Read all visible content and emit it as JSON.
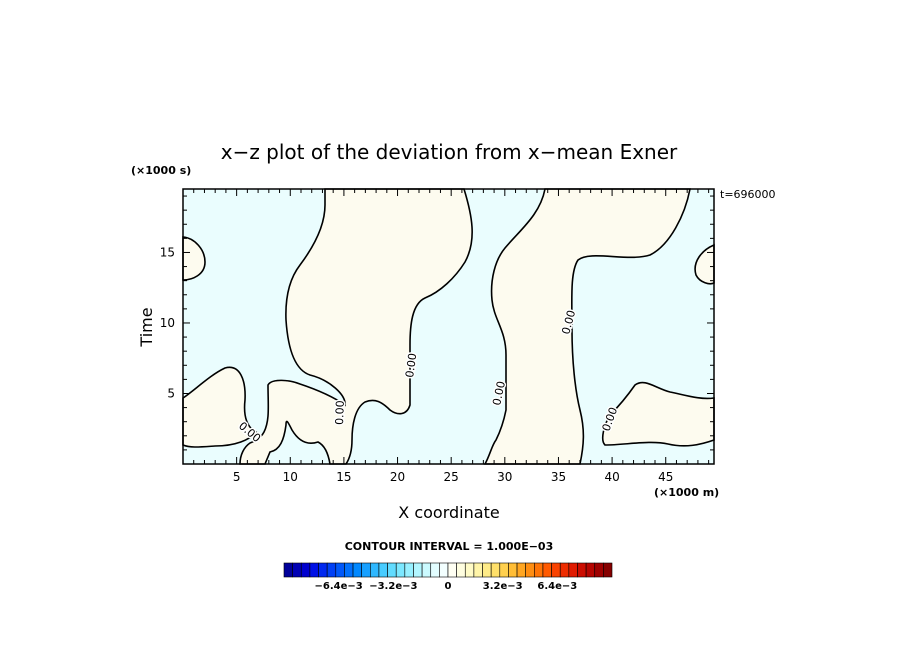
{
  "chart_data": {
    "type": "heatmap",
    "title": "x−z plot of the deviation from x−mean Exner",
    "xlabel": "X coordinate",
    "ylabel": "Time",
    "x_unit": "(×1000 m)",
    "y_unit": "(×1000 s)",
    "timestamp": "t=696000",
    "xlim": [
      0,
      49.5
    ],
    "ylim": [
      0,
      19.5
    ],
    "x_ticks": [
      5,
      10,
      15,
      20,
      25,
      30,
      35,
      40,
      45
    ],
    "y_ticks": [
      5,
      10,
      15
    ],
    "x_tick_labels": [
      "5",
      "10",
      "15",
      "20",
      "25",
      "30",
      "35",
      "40",
      "45"
    ],
    "y_tick_labels": [
      "5",
      "10",
      "15"
    ],
    "contour_interval_text": "CONTOUR INTERVAL = 1.000E−03",
    "contour_label": "0.00",
    "colors": {
      "negative_fill": "#eafdfe",
      "positive_fill": "#fdfbef"
    },
    "colorbar": {
      "range": [
        -0.0096,
        0.0096
      ],
      "levels": 38,
      "tick_labels": [
        "−6.4e−3",
        "−3.2e−3",
        "0",
        "3.2e−3",
        "6.4e−3"
      ],
      "tick_values": [
        -0.0064,
        -0.0032,
        0,
        0.0032,
        0.0064
      ],
      "colors": [
        "#00009a",
        "#0000b4",
        "#0000cf",
        "#0010e6",
        "#0028ef",
        "#0040f5",
        "#0058fa",
        "#0070fd",
        "#0088ff",
        "#17a0ff",
        "#2fb8ff",
        "#48ccff",
        "#62dcff",
        "#7ce8ff",
        "#97f0ff",
        "#b2f6ff",
        "#cbfaff",
        "#e2fdff",
        "#f3ffff",
        "#fffff3",
        "#fffee0",
        "#fffbc6",
        "#fff5a8",
        "#ffec88",
        "#ffe06a",
        "#ffd04e",
        "#ffbd36",
        "#ffa622",
        "#ff8e12",
        "#ff7406",
        "#ff5a00",
        "#f84200",
        "#ee2c00",
        "#e01a00",
        "#cc0c00",
        "#b60400",
        "#9e0000",
        "#860000"
      ]
    }
  }
}
